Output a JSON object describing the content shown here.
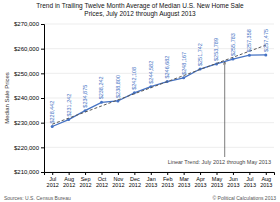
{
  "chart_data": {
    "type": "line",
    "title": "Trend in Trailing Twelve Month Average of Median U.S. New Home Sale\nPrices, July 2012 through August 2013",
    "y_label": "Median Sale Prices",
    "categories": [
      "Jul\n2012",
      "Aug\n2012",
      "Sep\n2012",
      "Oct\n2012",
      "Nov\n2012",
      "Dec\n2012",
      "Jan\n2013",
      "Feb\n2013",
      "Mar\n2013",
      "Apr\n2013",
      "May\n2013",
      "Jun\n2013",
      "Jul\n2013",
      "Aug\n2013"
    ],
    "series": [
      {
        "color": "#4472c4",
        "marker": "circle",
        "values": [
          228442,
          231242,
          234875,
          238242,
          238800,
          242108,
          244582,
          246682,
          248167,
          251742,
          253789,
          255783,
          257358,
          257475
        ],
        "value_labels": [
          "$228,442",
          "$231,242",
          "$234,875",
          "$238,242",
          "$238,800",
          "$242,108",
          "$244,582",
          "$246,682",
          "$248,167",
          "$251,742",
          "$253,789",
          "$255,783",
          "$257,358",
          "$257,475"
        ]
      },
      {
        "color": "#595959",
        "line_style": "dashed",
        "values": [
          229366.77,
          231832.89,
          234299.01,
          236765.13,
          239231.25,
          241697.36,
          244163.48,
          246629.6,
          249095.72,
          251561.84,
          254027.95,
          256494.07,
          258960.19,
          261426.31
        ]
      }
    ],
    "data_labels": true,
    "annotations": [
      "Linear Trend: July 2012 through May 2013"
    ],
    "footnotes": [
      "Sources: U.S. Census Bureau",
      "© Political Calculations 2013"
    ],
    "ylim": [
      210000,
      270000
    ],
    "yticks": [
      {
        "value": 210000,
        "label": "$210,000"
      },
      {
        "value": 220000,
        "label": "$220,000"
      },
      {
        "value": 230000,
        "label": "$230,000"
      },
      {
        "value": 240000,
        "label": "$240,000"
      },
      {
        "value": 250000,
        "label": "$250,000"
      },
      {
        "value": 260000,
        "label": "$260,000"
      },
      {
        "value": 270000,
        "label": "$270,000"
      }
    ],
    "grid": true
  }
}
